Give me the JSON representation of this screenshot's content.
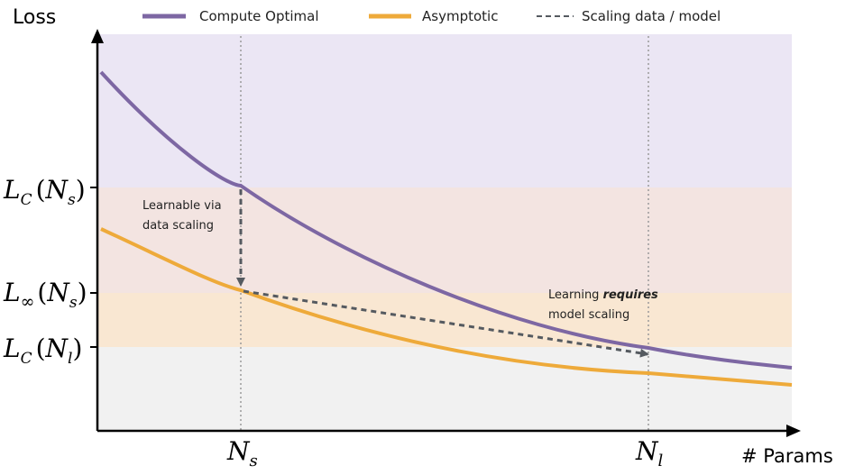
{
  "chart_data": {
    "type": "line",
    "ylabel": "Loss",
    "xlabel": "# Params",
    "legend_position": "top",
    "legend": {
      "compute_optimal": "Compute Optimal",
      "asymptotic": "Asymptotic",
      "scaling": "Scaling data / model"
    },
    "colors": {
      "compute_optimal": "#7d67a3",
      "asymptotic": "#eeaa3a",
      "scaling": "#555a60",
      "band_top": "#ebe6f4",
      "band_upper_mid": "#f3e4e1",
      "band_lower_mid": "#f9e7d2",
      "band_bottom": "#f1f1f1"
    },
    "x_ticks": {
      "ns": {
        "main": "N",
        "sub": "s"
      },
      "nl": {
        "main": "N",
        "sub": "l"
      }
    },
    "y_ticks": {
      "lc_ns": {
        "main": "L",
        "sub": "C",
        "arg": "N",
        "arg_sub": "s"
      },
      "linf_ns": {
        "main": "L",
        "sub": "∞",
        "arg": "N",
        "arg_sub": "s"
      },
      "lc_nl": {
        "main": "L",
        "sub": "C",
        "arg": "N",
        "arg_sub": "l"
      }
    },
    "annotations": {
      "data_scaling": [
        "Learnable via",
        "data scaling"
      ],
      "model_scaling_pre": "Learning ",
      "model_scaling_bold": "requires",
      "model_scaling_line2": "model scaling"
    }
  }
}
